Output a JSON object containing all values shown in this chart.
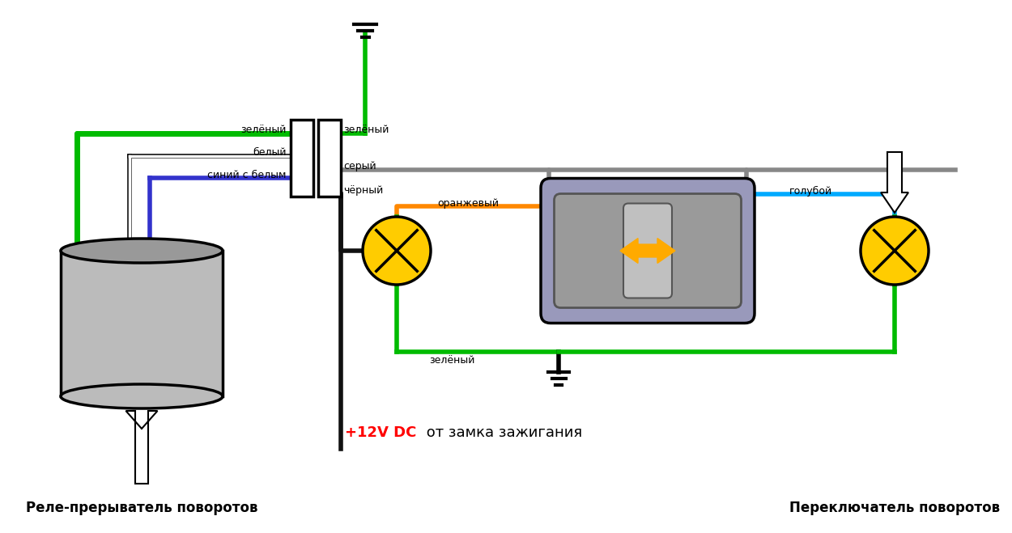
{
  "bg_color": "#ffffff",
  "wire_green": "#00bb00",
  "wire_white": "#ffffff",
  "wire_blue": "#3333cc",
  "wire_gray": "#888888",
  "wire_black": "#111111",
  "wire_orange": "#ff8800",
  "wire_light_blue": "#00aaff",
  "relay_fill": "#bbbbbb",
  "relay_top_fill": "#999999",
  "lamp_fill": "#ffcc00",
  "switch_fill": "#9999cc",
  "switch_inner_fill": "#aaaaaa",
  "arrow_fill": "#ffaa00",
  "label_green_l": "зелёный",
  "label_white": "белый",
  "label_blue_white": "синий с белым",
  "label_gray": "серый",
  "label_black": "чёрный",
  "label_orange": "оранжевый",
  "label_light_blue": "голубой",
  "label_green_r": "зелёный",
  "text_relay": "Реле-прерыватель поворотов",
  "text_switch": "Переключатель поворотов",
  "text_12v": "+12V DC",
  "text_ignition": " от замка зажигания"
}
